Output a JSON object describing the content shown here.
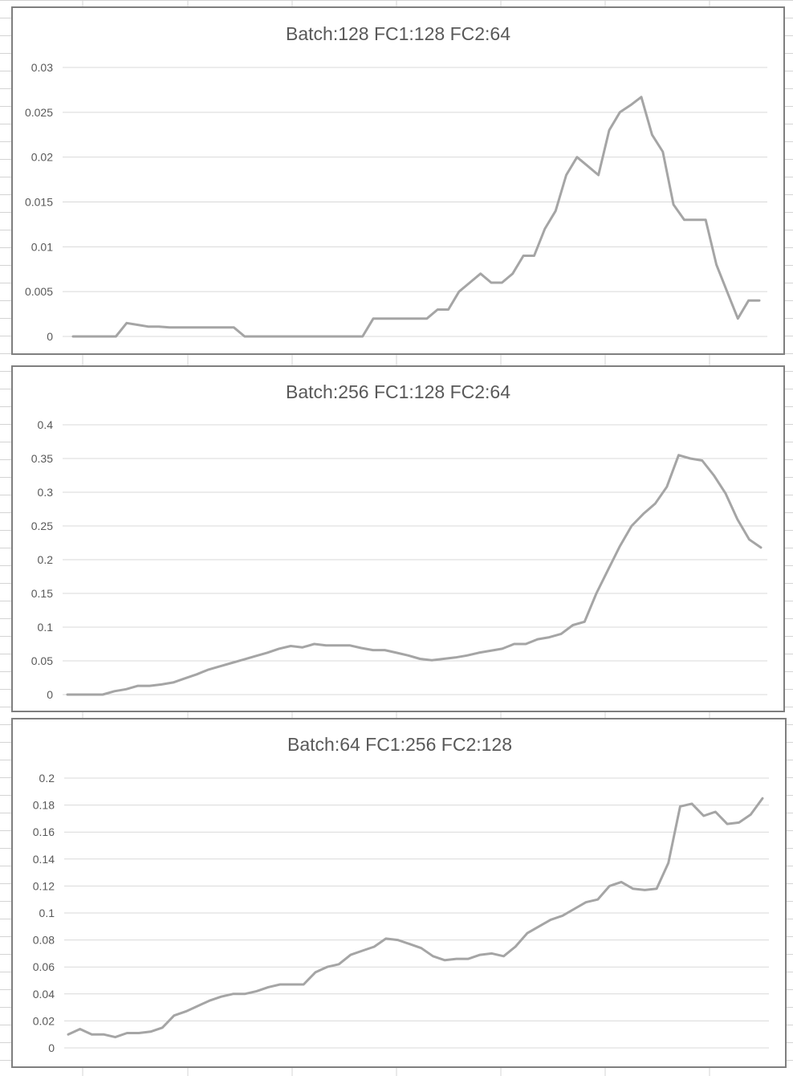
{
  "colors": {
    "series": "#a5a5a5",
    "grid": "#d9d9d9",
    "text": "#595959",
    "border": "#7f7f7f",
    "sheet_grid": "#d4d4d4"
  },
  "chart_data": [
    {
      "type": "line",
      "title": "Batch:128   FC1:128   FC2:64",
      "xlabel": "",
      "ylabel": "",
      "ylim": [
        0,
        0.03
      ],
      "y_ticks": [
        "0",
        "0.005",
        "0.01",
        "0.015",
        "0.02",
        "0.025",
        "0.03"
      ],
      "grid": true,
      "legend": "none",
      "series": [
        {
          "values": [
            0,
            0,
            0,
            0,
            0,
            0.0015,
            0.0013,
            0.0011,
            0.0011,
            0.001,
            0.001,
            0.001,
            0.001,
            0.001,
            0.001,
            0.001,
            0,
            0,
            0,
            0,
            0,
            0,
            0,
            0,
            0,
            0,
            0,
            0,
            0.002,
            0.002,
            0.002,
            0.002,
            0.002,
            0.002,
            0.003,
            0.003,
            0.005,
            0.006,
            0.007,
            0.006,
            0.006,
            0.007,
            0.009,
            0.009,
            0.012,
            0.014,
            0.018,
            0.02,
            0.019,
            0.018,
            0.023,
            0.025,
            0.0258,
            0.0267,
            0.0225,
            0.0206,
            0.0147,
            0.013,
            0.013,
            0.013,
            0.008,
            0.005,
            0.002,
            0.004,
            0.004
          ]
        }
      ]
    },
    {
      "type": "line",
      "title": "Batch:256   FC1:128   FC2:64",
      "xlabel": "",
      "ylabel": "",
      "ylim": [
        0,
        0.4
      ],
      "y_ticks": [
        "0",
        "0.05",
        "0.1",
        "0.15",
        "0.2",
        "0.25",
        "0.3",
        "0.35",
        "0.4"
      ],
      "grid": true,
      "legend": "none",
      "series": [
        {
          "values": [
            0,
            0,
            0,
            0,
            0.005,
            0.008,
            0.013,
            0.013,
            0.015,
            0.018,
            0.024,
            0.03,
            0.037,
            0.042,
            0.047,
            0.052,
            0.057,
            0.062,
            0.068,
            0.072,
            0.07,
            0.075,
            0.073,
            0.073,
            0.073,
            0.069,
            0.066,
            0.066,
            0.062,
            0.058,
            0.053,
            0.051,
            0.053,
            0.055,
            0.058,
            0.062,
            0.065,
            0.068,
            0.075,
            0.075,
            0.082,
            0.085,
            0.09,
            0.103,
            0.108,
            0.15,
            0.185,
            0.22,
            0.25,
            0.268,
            0.283,
            0.308,
            0.355,
            0.35,
            0.347,
            0.325,
            0.298,
            0.26,
            0.23,
            0.218
          ]
        }
      ]
    },
    {
      "type": "line",
      "title": "Batch:64   FC1:256   FC2:128",
      "xlabel": "",
      "ylabel": "",
      "ylim": [
        0,
        0.2
      ],
      "y_ticks": [
        "0",
        "0.02",
        "0.04",
        "0.06",
        "0.08",
        "0.1",
        "0.12",
        "0.14",
        "0.16",
        "0.18",
        "0.2"
      ],
      "grid": true,
      "legend": "none",
      "series": [
        {
          "values": [
            0.01,
            0.014,
            0.01,
            0.01,
            0.008,
            0.011,
            0.011,
            0.012,
            0.015,
            0.024,
            0.027,
            0.031,
            0.035,
            0.038,
            0.04,
            0.04,
            0.042,
            0.045,
            0.047,
            0.047,
            0.047,
            0.056,
            0.06,
            0.062,
            0.069,
            0.072,
            0.075,
            0.081,
            0.08,
            0.077,
            0.074,
            0.068,
            0.065,
            0.066,
            0.066,
            0.069,
            0.07,
            0.068,
            0.075,
            0.085,
            0.09,
            0.095,
            0.098,
            0.103,
            0.108,
            0.11,
            0.12,
            0.123,
            0.118,
            0.117,
            0.118,
            0.137,
            0.179,
            0.181,
            0.172,
            0.175,
            0.166,
            0.167,
            0.173,
            0.185
          ]
        }
      ]
    }
  ]
}
